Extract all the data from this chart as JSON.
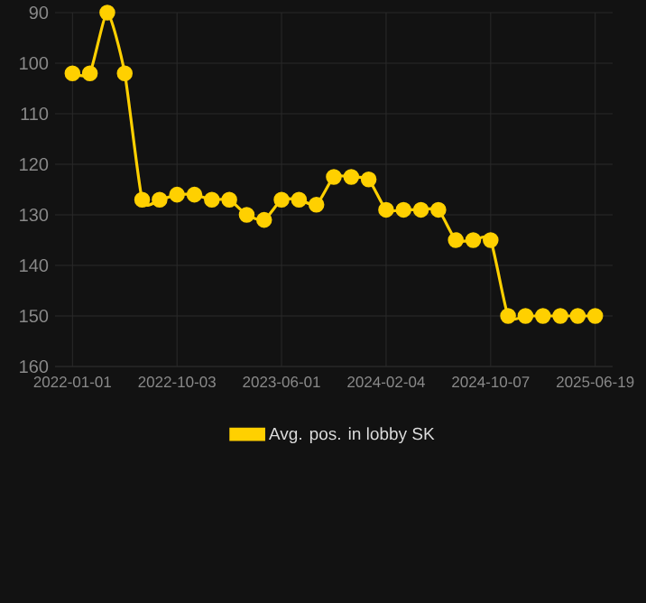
{
  "chart_data": {
    "type": "line",
    "categories": [
      "2022-01-01",
      null,
      null,
      null,
      null,
      null,
      "2022-10-03",
      null,
      null,
      null,
      null,
      null,
      "2023-06-01",
      null,
      null,
      null,
      null,
      null,
      "2024-02-04",
      null,
      null,
      null,
      null,
      null,
      "2024-10-07",
      null,
      null,
      null,
      null,
      null,
      "2025-06-19"
    ],
    "series": [
      {
        "name": "Avg. pos. in lobby SK",
        "color": "#ffd000",
        "values": [
          102,
          102,
          90,
          102,
          127,
          127,
          126,
          126,
          127,
          127,
          130,
          131,
          127,
          127,
          128,
          122.5,
          122.5,
          123,
          129,
          129,
          129,
          129,
          135,
          135,
          135,
          150,
          150,
          150,
          150,
          150,
          150
        ]
      }
    ],
    "ylim": [
      160,
      90
    ],
    "yticks": [
      90,
      100,
      110,
      120,
      130,
      140,
      150,
      160
    ],
    "grid": true,
    "legend": "bottom",
    "marker": "circle",
    "line_style": "solid"
  }
}
